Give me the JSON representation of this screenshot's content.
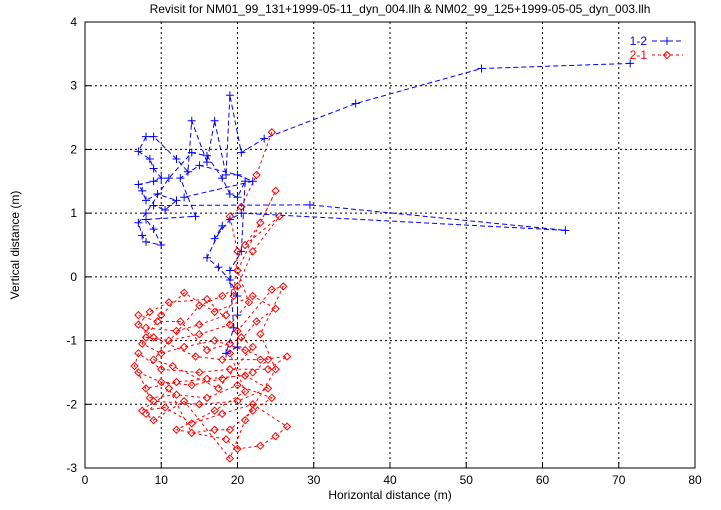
{
  "chart_data": {
    "type": "scatter",
    "title": "Revisit for NM01_99_131+1999-05-11_dyn_004.llh & NM02_99_125+1999-05-05_dyn_003.llh",
    "xlabel": "Horizontal distance (m)",
    "ylabel": "Vertical distance (m)",
    "xlim": [
      0,
      80
    ],
    "ylim": [
      -3,
      4
    ],
    "xticks": [
      "0",
      "10",
      "20",
      "30",
      "40",
      "50",
      "60",
      "70",
      "80"
    ],
    "yticks": [
      "-3",
      "-2",
      "-1",
      "0",
      "1",
      "2",
      "3",
      "4"
    ],
    "grid": true,
    "legend_position": "top-right",
    "series": [
      {
        "name": "1-2",
        "color": "#0000ff",
        "marker": "plus",
        "points": [
          [
            71.5,
            3.35
          ],
          [
            52,
            3.27
          ],
          [
            35.5,
            2.72
          ],
          [
            23.5,
            2.17
          ],
          [
            20.5,
            1.95
          ],
          [
            19,
            2.85
          ],
          [
            18.5,
            1.6
          ],
          [
            17,
            2.45
          ],
          [
            16,
            1.8
          ],
          [
            14,
            2.45
          ],
          [
            13.5,
            1.65
          ],
          [
            12,
            1.85
          ],
          [
            9,
            2.2
          ],
          [
            8,
            2.2
          ],
          [
            7,
            1.97
          ],
          [
            8.5,
            1.85
          ],
          [
            9,
            1.7
          ],
          [
            10,
            1.55
          ],
          [
            9,
            1.5
          ],
          [
            7,
            1.45
          ],
          [
            7.5,
            1.35
          ],
          [
            8,
            1.2
          ],
          [
            9.5,
            1.3
          ],
          [
            12,
            1.2
          ],
          [
            10.5,
            1.05
          ],
          [
            9,
            1.12
          ],
          [
            29.5,
            1.13
          ],
          [
            63,
            0.73
          ],
          [
            20.5,
            1.0
          ],
          [
            19,
            0.9
          ],
          [
            17,
            0.6
          ],
          [
            18,
            0.8
          ],
          [
            16,
            0.3
          ],
          [
            17.5,
            0.15
          ],
          [
            19,
            -0.05
          ],
          [
            20,
            -0.3
          ],
          [
            20,
            -0.6
          ],
          [
            20,
            -1.1
          ],
          [
            18.5,
            -1.2
          ],
          [
            19.5,
            -0.8
          ],
          [
            19,
            0.1
          ],
          [
            20.5,
            0.4
          ],
          [
            21,
            1.5
          ],
          [
            20,
            1.25
          ],
          [
            19,
            1.3
          ],
          [
            18,
            1.55
          ],
          [
            16,
            1.9
          ],
          [
            14,
            1.95
          ],
          [
            11,
            1.55
          ],
          [
            8,
            1.0
          ],
          [
            7,
            0.85
          ],
          [
            7.5,
            0.65
          ],
          [
            8,
            0.55
          ],
          [
            10,
            0.5
          ],
          [
            9,
            0.75
          ],
          [
            8,
            0.9
          ],
          [
            14.5,
            0.95
          ],
          [
            12.5,
            1.55
          ],
          [
            15,
            1.75
          ],
          [
            20,
            1.6
          ],
          [
            22,
            1.5
          ],
          [
            13,
            1.25
          ]
        ]
      },
      {
        "name": "2-1",
        "color": "#ff0000",
        "marker": "diamond",
        "points": [
          [
            24.5,
            2.27
          ],
          [
            22.5,
            1.6
          ],
          [
            20.5,
            1.1
          ],
          [
            19,
            0.95
          ],
          [
            20,
            0.4
          ],
          [
            19.5,
            -0.3
          ],
          [
            18.5,
            -0.6
          ],
          [
            15,
            -0.75
          ],
          [
            12,
            -0.85
          ],
          [
            8,
            -0.8
          ],
          [
            7.5,
            -1.05
          ],
          [
            10,
            -1.2
          ],
          [
            13,
            -1.1
          ],
          [
            17,
            -1.0
          ],
          [
            21,
            -1.15
          ],
          [
            24,
            -1.3
          ],
          [
            22,
            -1.5
          ],
          [
            18,
            -1.6
          ],
          [
            14,
            -1.7
          ],
          [
            10,
            -1.65
          ],
          [
            7,
            -1.5
          ],
          [
            8.5,
            -1.9
          ],
          [
            12,
            -1.85
          ],
          [
            16,
            -1.9
          ],
          [
            20,
            -1.7
          ],
          [
            24.5,
            -1.9
          ],
          [
            22,
            -2.1
          ],
          [
            19,
            -2.4
          ],
          [
            17,
            -2.4
          ],
          [
            14,
            -2.45
          ],
          [
            11,
            -1.75
          ],
          [
            8,
            -2.15
          ],
          [
            9,
            -2.25
          ],
          [
            13,
            -1.95
          ],
          [
            19,
            -2.85
          ],
          [
            21,
            -2.25
          ],
          [
            25,
            -1.45
          ],
          [
            23,
            -0.9
          ],
          [
            26,
            -0.15
          ],
          [
            24.5,
            -0.2
          ],
          [
            20,
            -0.85
          ],
          [
            16,
            -0.35
          ],
          [
            11,
            -0.4
          ],
          [
            8.5,
            -0.55
          ],
          [
            7,
            -0.75
          ],
          [
            9,
            -0.95
          ],
          [
            14.5,
            -1.25
          ],
          [
            18,
            -1.3
          ],
          [
            23,
            -1.3
          ],
          [
            26.5,
            -1.25
          ],
          [
            24,
            -1.45
          ],
          [
            19,
            -1.45
          ],
          [
            15,
            -1.5
          ],
          [
            10,
            -1.45
          ],
          [
            7,
            -1.2
          ],
          [
            6.5,
            -1.4
          ],
          [
            8,
            -1.75
          ],
          [
            12,
            -1.65
          ],
          [
            16,
            -1.6
          ],
          [
            21,
            -1.55
          ],
          [
            24,
            -1.75
          ],
          [
            20,
            -1.95
          ],
          [
            15,
            -2.0
          ],
          [
            9,
            -1.95
          ],
          [
            7.5,
            -2.1
          ],
          [
            10.5,
            -2.05
          ],
          [
            14,
            -2.3
          ],
          [
            18,
            -2.15
          ],
          [
            22,
            -2.0
          ],
          [
            26.5,
            -2.35
          ],
          [
            25,
            -2.5
          ],
          [
            23,
            -2.65
          ],
          [
            20,
            -2.7
          ],
          [
            18.5,
            -2.55
          ],
          [
            12,
            -2.4
          ],
          [
            17,
            -2.1
          ],
          [
            21,
            -1.8
          ],
          [
            19,
            -1.2
          ],
          [
            22.5,
            -0.7
          ],
          [
            25,
            -0.5
          ],
          [
            22,
            -0.3
          ],
          [
            17,
            -0.55
          ],
          [
            13,
            -0.25
          ],
          [
            10,
            -0.6
          ],
          [
            8,
            -0.95
          ],
          [
            11,
            -1.0
          ],
          [
            15,
            -0.9
          ],
          [
            19,
            -0.75
          ],
          [
            21.5,
            -0.4
          ],
          [
            20,
            0.1
          ],
          [
            25,
            1.35
          ],
          [
            23,
            0.85
          ],
          [
            21,
            0.5
          ],
          [
            25.5,
            0.95
          ],
          [
            22,
            0.4
          ],
          [
            20,
            -0.15
          ],
          [
            18,
            -0.3
          ],
          [
            15,
            -0.45
          ],
          [
            9,
            -1.3
          ],
          [
            11.5,
            -1.4
          ],
          [
            17.5,
            -1.75
          ],
          [
            22,
            -1.1
          ],
          [
            20.5,
            -0.95
          ],
          [
            19,
            -1.05
          ],
          [
            16,
            -1.15
          ],
          [
            12.5,
            -0.7
          ],
          [
            9.5,
            -0.7
          ],
          [
            7,
            -0.6
          ]
        ]
      }
    ]
  }
}
